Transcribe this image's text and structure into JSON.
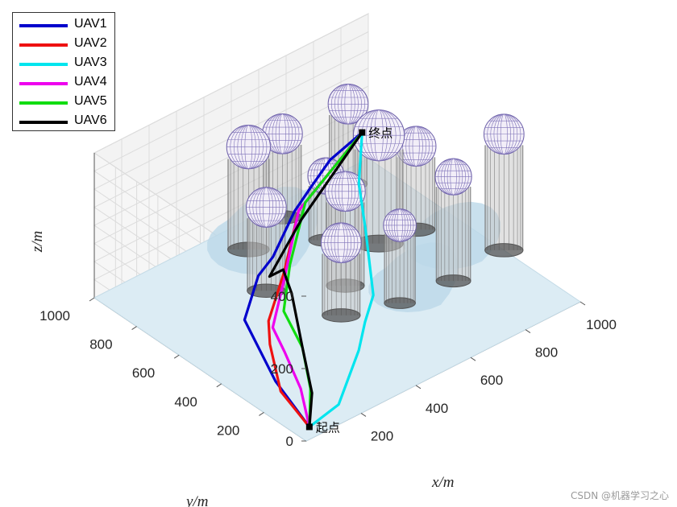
{
  "chart_data": {
    "type": "line",
    "title": "",
    "xlabel": "x/m",
    "ylabel": "y/m",
    "zlabel": "z/m",
    "xlim": [
      0,
      1000
    ],
    "ylim": [
      0,
      1000
    ],
    "zlim": [
      0,
      400
    ],
    "x_ticks": [
      200,
      400,
      600,
      800,
      1000
    ],
    "y_ticks": [
      200,
      400,
      600,
      800,
      1000
    ],
    "z_ticks": [
      0,
      200,
      400
    ],
    "grid": true,
    "legend_position": "top-left",
    "annotations": [
      {
        "text": "起点",
        "x": 50,
        "y": 50,
        "z": 0
      },
      {
        "text": "终点",
        "x": 900,
        "y": 900,
        "z": 150
      }
    ],
    "obstacles": [
      {
        "x": 470,
        "y": 880,
        "r": 60,
        "h": 250
      },
      {
        "x": 640,
        "y": 940,
        "r": 55,
        "h": 200
      },
      {
        "x": 880,
        "y": 940,
        "r": 55,
        "h": 190
      },
      {
        "x": 380,
        "y": 680,
        "r": 55,
        "h": 200
      },
      {
        "x": 660,
        "y": 760,
        "r": 50,
        "h": 150
      },
      {
        "x": 760,
        "y": 640,
        "r": 70,
        "h": 260
      },
      {
        "x": 880,
        "y": 620,
        "r": 55,
        "h": 200
      },
      {
        "x": 560,
        "y": 540,
        "r": 55,
        "h": 230
      },
      {
        "x": 460,
        "y": 430,
        "r": 55,
        "h": 170
      },
      {
        "x": 620,
        "y": 360,
        "r": 45,
        "h": 190
      },
      {
        "x": 800,
        "y": 340,
        "r": 50,
        "h": 260
      },
      {
        "x": 1000,
        "y": 360,
        "r": 55,
        "h": 290
      }
    ],
    "series": [
      {
        "name": "UAV1",
        "color": "#0000cc",
        "points": [
          [
            50,
            50,
            0
          ],
          [
            120,
            300,
            0
          ],
          [
            200,
            550,
            40
          ],
          [
            320,
            640,
            80
          ],
          [
            420,
            700,
            70
          ],
          [
            560,
            780,
            110
          ],
          [
            660,
            830,
            120
          ],
          [
            760,
            870,
            140
          ],
          [
            900,
            900,
            150
          ]
        ]
      },
      {
        "name": "UAV2",
        "color": "#ee1111",
        "points": [
          [
            50,
            50,
            0
          ],
          [
            100,
            250,
            0
          ],
          [
            200,
            430,
            20
          ],
          [
            280,
            540,
            10
          ],
          [
            400,
            620,
            70
          ],
          [
            560,
            760,
            120
          ],
          [
            900,
            900,
            150
          ]
        ]
      },
      {
        "name": "UAV3",
        "color": "#00e5ee",
        "points": [
          [
            50,
            50,
            0
          ],
          [
            180,
            80,
            0
          ],
          [
            300,
            140,
            80
          ],
          [
            400,
            240,
            80
          ],
          [
            500,
            330,
            80
          ],
          [
            650,
            560,
            110
          ],
          [
            780,
            760,
            110
          ],
          [
            900,
            900,
            150
          ]
        ]
      },
      {
        "name": "UAV4",
        "color": "#ee00ee",
        "points": [
          [
            50,
            50,
            0
          ],
          [
            150,
            220,
            0
          ],
          [
            230,
            400,
            0
          ],
          [
            280,
            520,
            0
          ],
          [
            400,
            620,
            50
          ],
          [
            560,
            760,
            120
          ],
          [
            900,
            900,
            150
          ]
        ]
      },
      {
        "name": "UAV5",
        "color": "#11dd11",
        "points": [
          [
            50,
            50,
            0
          ],
          [
            170,
            200,
            0
          ],
          [
            280,
            380,
            0
          ],
          [
            320,
            520,
            30
          ],
          [
            420,
            620,
            80
          ],
          [
            600,
            780,
            120
          ],
          [
            900,
            900,
            150
          ]
        ]
      },
      {
        "name": "UAV6",
        "color": "#000000",
        "points": [
          [
            50,
            50,
            0
          ],
          [
            160,
            180,
            0
          ],
          [
            280,
            380,
            0
          ],
          [
            380,
            560,
            40
          ],
          [
            380,
            600,
            90
          ],
          [
            330,
            600,
            90
          ],
          [
            540,
            720,
            120
          ],
          [
            900,
            900,
            150
          ]
        ]
      }
    ]
  },
  "watermark": "CSDN @机器学习之心"
}
